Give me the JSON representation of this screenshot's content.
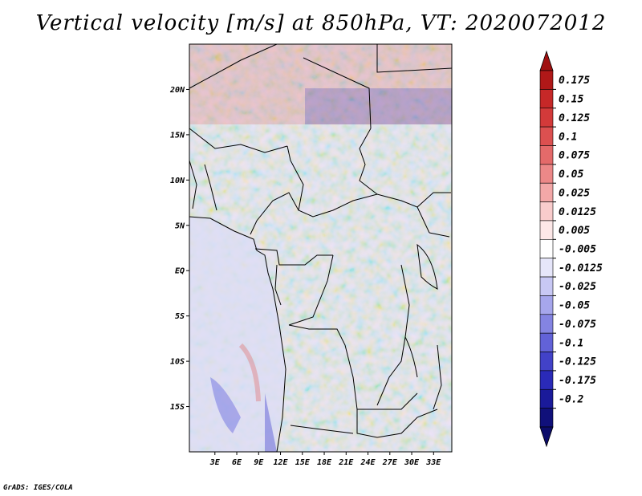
{
  "title": "Vertical velocity [m/s] at 850hPa, VT: 2020072012",
  "credit": "GrADS: IGES/COLA",
  "map": {
    "lon_range": [
      -0.5,
      35.5
    ],
    "lat_range": [
      -20,
      25
    ],
    "lat_ticks": [
      {
        "value": 20,
        "label": "20N"
      },
      {
        "value": 15,
        "label": "15N"
      },
      {
        "value": 10,
        "label": "10N"
      },
      {
        "value": 5,
        "label": "5N"
      },
      {
        "value": 0,
        "label": "EQ"
      },
      {
        "value": -5,
        "label": "5S"
      },
      {
        "value": -10,
        "label": "10S"
      },
      {
        "value": -15,
        "label": "15S"
      }
    ],
    "lon_ticks": [
      {
        "value": 3,
        "label": "3E"
      },
      {
        "value": 6,
        "label": "6E"
      },
      {
        "value": 9,
        "label": "9E"
      },
      {
        "value": 12,
        "label": "12E"
      },
      {
        "value": 15,
        "label": "15E"
      },
      {
        "value": 18,
        "label": "18E"
      },
      {
        "value": 21,
        "label": "21E"
      },
      {
        "value": 24,
        "label": "24E"
      },
      {
        "value": 27,
        "label": "27E"
      },
      {
        "value": 30,
        "label": "30E"
      },
      {
        "value": 33,
        "label": "33E"
      }
    ],
    "field_note": "shaded vertical velocity field"
  },
  "colorbar": {
    "labels": [
      "0.175",
      "0.15",
      "0.125",
      "0.1",
      "0.075",
      "0.05",
      "0.025",
      "0.0125",
      "0.005",
      "-0.005",
      "-0.0125",
      "-0.025",
      "-0.05",
      "-0.075",
      "-0.1",
      "-0.125",
      "-0.175",
      "-0.2"
    ],
    "colors": [
      "#b01818",
      "#c62828",
      "#d33a3a",
      "#dc5050",
      "#e46a6a",
      "#ec8888",
      "#f3a8a8",
      "#f9cccc",
      "#fde8e8",
      "#ffffff",
      "#e6e6fa",
      "#c8c8f4",
      "#a6a6ec",
      "#8484e2",
      "#6262d8",
      "#4242c8",
      "#2a2ab8",
      "#1a1a9a",
      "#10107a"
    ],
    "top_arrow_color": "#a01010",
    "bottom_arrow_color": "#0c0c6a"
  }
}
